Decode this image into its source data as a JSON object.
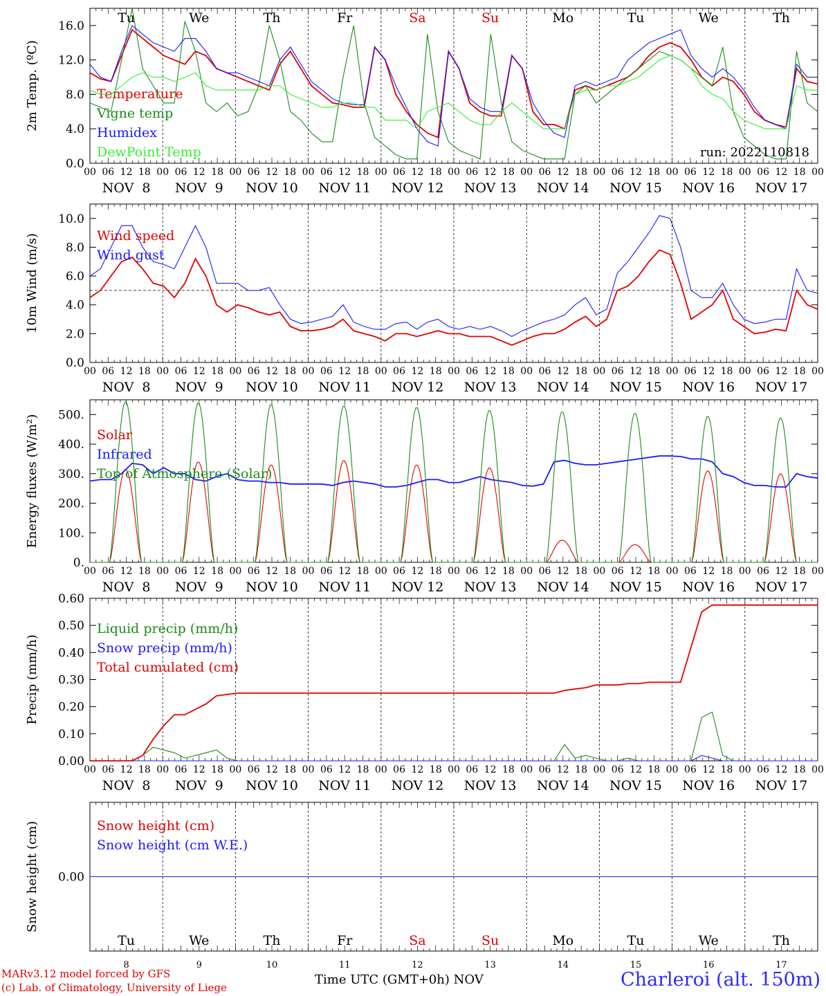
{
  "chart_data": {
    "type": "line",
    "run_label": "run: 2022110818",
    "x_ticks_hours": [
      "00",
      "06",
      "12",
      "18"
    ],
    "dates": [
      "NOV  8",
      "NOV  9",
      "NOV 10",
      "NOV 11",
      "NOV 12",
      "NOV 13",
      "NOV 14",
      "NOV 15",
      "NOV 16",
      "NOV 17"
    ],
    "weekdays": [
      {
        "name": "Tu",
        "color": "#000000"
      },
      {
        "name": "We",
        "color": "#000000"
      },
      {
        "name": "Th",
        "color": "#000000"
      },
      {
        "name": "Fr",
        "color": "#000000"
      },
      {
        "name": "Sa",
        "color": "#e00000"
      },
      {
        "name": "Su",
        "color": "#e00000"
      },
      {
        "name": "Mo",
        "color": "#000000"
      },
      {
        "name": "Tu",
        "color": "#000000"
      },
      {
        "name": "We",
        "color": "#000000"
      },
      {
        "name": "Th",
        "color": "#000000"
      }
    ],
    "day_numbers": [
      "8",
      "9",
      "10",
      "11",
      "12",
      "13",
      "14",
      "15",
      "16",
      "17"
    ],
    "panels": [
      {
        "id": "temperature",
        "ylabel": "2m Temp. (ºC)",
        "ylim": [
          0,
          18
        ],
        "yticks": [
          0,
          4,
          8,
          12,
          16
        ],
        "ytick_labels": [
          "0.0",
          "4.0",
          "8.0",
          "12.0",
          "16.0"
        ],
        "series": [
          {
            "name": "Temperature",
            "color": "#e00000",
            "values": [
              10.5,
              9.8,
              9.5,
              12.5,
              15.5,
              14.5,
              13.5,
              12.5,
              12,
              11.5,
              13,
              12.5,
              11,
              10.5,
              10,
              9.5,
              9,
              8.5,
              11.5,
              13,
              11,
              9,
              8,
              7,
              6.8,
              6.5,
              6.5,
              13.5,
              12,
              8,
              6,
              4.5,
              3.5,
              3,
              13,
              11,
              7,
              6,
              5.5,
              5.5,
              12.5,
              11,
              6,
              4.5,
              4.5,
              4,
              8.5,
              9,
              8.5,
              9,
              9.5,
              10,
              11,
              12.5,
              13.5,
              14,
              13.5,
              12,
              10,
              9,
              10,
              9.5,
              8,
              6,
              5,
              4.5,
              4.2,
              11,
              9.5,
              9.2
            ]
          },
          {
            "name": "Vigne temp",
            "color": "#1a8a1a",
            "values": [
              7,
              6.5,
              6,
              12,
              18,
              11,
              9,
              7,
              7,
              16.5,
              13,
              7,
              6,
              7,
              5.5,
              6,
              9,
              16,
              12,
              6,
              5,
              3.5,
              2.5,
              2.5,
              10,
              16,
              7,
              3,
              2,
              1,
              0.5,
              0.5,
              15,
              6,
              2.5,
              1.5,
              1,
              0.5,
              15,
              7,
              2.5,
              1.5,
              1,
              0.5,
              0.5,
              0.5,
              8,
              9,
              7,
              8,
              9,
              10,
              11,
              12,
              13,
              12.5,
              12,
              11,
              10,
              9,
              13.5,
              6,
              3,
              2,
              1,
              0.5,
              0.5,
              13,
              7,
              6
            ]
          },
          {
            "name": "Humidex",
            "color": "#1a1aff",
            "values": [
              11.5,
              10,
              9.5,
              13,
              16,
              15,
              14,
              13.5,
              13,
              14.5,
              14.5,
              13,
              11,
              10.5,
              10.5,
              10,
              9.5,
              9,
              12,
              13.5,
              11.5,
              9.5,
              8.5,
              7.5,
              7,
              6.8,
              6.8,
              13.5,
              12,
              9,
              6.5,
              4,
              2.5,
              2,
              13,
              11,
              7.5,
              6.5,
              6,
              6,
              12.5,
              11,
              7,
              5,
              3.5,
              3,
              9,
              9.5,
              9,
              9.5,
              10,
              12,
              13,
              14,
              14.5,
              15,
              15.5,
              12.5,
              11,
              10,
              11,
              10,
              8.5,
              6.5,
              5,
              4.5,
              4,
              11.5,
              10,
              10
            ]
          },
          {
            "name": "DewPoint Temp",
            "color": "#33ee33",
            "values": [
              8.5,
              8,
              8,
              9,
              10,
              10.5,
              10,
              10,
              9.5,
              10,
              10.5,
              9,
              8.5,
              8.5,
              8.5,
              8.5,
              8.5,
              9,
              9,
              8,
              7.5,
              7,
              6.5,
              6.5,
              7,
              7,
              6.5,
              6.5,
              5,
              5,
              5,
              4,
              6,
              6.5,
              7,
              6,
              5,
              4.5,
              4.5,
              6,
              7,
              6,
              5,
              4,
              4,
              4,
              8,
              8.5,
              8.5,
              9,
              9,
              9.5,
              10,
              11,
              12,
              12.5,
              12,
              11,
              9,
              8,
              7.5,
              6,
              5,
              4.5,
              4,
              4,
              4,
              9,
              8.5,
              8.5
            ]
          }
        ]
      },
      {
        "id": "wind",
        "ylabel": "10m Wind (m/s)",
        "ylim": [
          0,
          11
        ],
        "yticks": [
          0,
          2,
          4,
          6,
          8,
          10
        ],
        "ytick_labels": [
          "0.0",
          "2.0",
          "4.0",
          "6.0",
          "8.0",
          "10.0"
        ],
        "reference_line": 5,
        "series": [
          {
            "name": "Wind speed",
            "color": "#e00000",
            "values": [
              4.5,
              5,
              6,
              7,
              7.3,
              6.5,
              5.5,
              5.3,
              4.5,
              5.5,
              7.2,
              6,
              4,
              3.5,
              4,
              3.8,
              3.5,
              3.3,
              3.5,
              2.5,
              2.2,
              2.2,
              2.3,
              2.5,
              3,
              2.2,
              2,
              1.8,
              1.5,
              2,
              2,
              1.8,
              2,
              2.2,
              2,
              2,
              1.8,
              1.8,
              1.8,
              1.5,
              1.2,
              1.5,
              1.8,
              2,
              2,
              2.3,
              2.8,
              3.2,
              2.5,
              3,
              5,
              5.3,
              6,
              7,
              7.8,
              7.5,
              5.5,
              3,
              3.5,
              4,
              5,
              3,
              2.5,
              2,
              2.1,
              2.3,
              2.2,
              5,
              4,
              3.7
            ]
          },
          {
            "name": "Wind gust",
            "color": "#1a1aff",
            "values": [
              6,
              6.5,
              8,
              9.5,
              9.5,
              8,
              7,
              6.8,
              6.5,
              8,
              9.5,
              8,
              5.5,
              5.5,
              5.5,
              5,
              5,
              5.2,
              4,
              3,
              2.7,
              2.8,
              3,
              3.2,
              4,
              2.8,
              2.5,
              2.3,
              2.3,
              2.7,
              2.8,
              2.3,
              2.8,
              3,
              2.5,
              2.3,
              2.5,
              2.3,
              2.5,
              2.2,
              1.8,
              2.2,
              2.5,
              2.8,
              3,
              3.3,
              4,
              4.5,
              3.3,
              3.7,
              6.2,
              7,
              8,
              9,
              10.2,
              10,
              8,
              5,
              4.5,
              4.5,
              5.5,
              4,
              3,
              2.7,
              2.8,
              3,
              3,
              6.5,
              5,
              4.8
            ]
          }
        ]
      },
      {
        "id": "energy",
        "ylabel": "Energy fluxes (W/m²)",
        "ylim": [
          0,
          550
        ],
        "yticks": [
          0,
          100,
          200,
          300,
          400,
          500
        ],
        "ytick_labels": [
          "0.",
          "100.",
          "200.",
          "300.",
          "400.",
          "500."
        ],
        "series": [
          {
            "name": "Solar",
            "color": "#e00000",
            "peaks": [
              315,
              340,
              330,
              345,
              330,
              320,
              75,
              60,
              310,
              300
            ]
          },
          {
            "name": "Infrared",
            "color": "#1a1aff",
            "values": [
              275,
              280,
              280,
              300,
              335,
              330,
              300,
              320,
              300,
              300,
              280,
              275,
              290,
              300,
              280,
              275,
              275,
              270,
              270,
              265,
              265,
              265,
              265,
              260,
              270,
              275,
              270,
              265,
              255,
              255,
              260,
              270,
              280,
              280,
              270,
              270,
              280,
              290,
              280,
              275,
              270,
              260,
              258,
              265,
              340,
              345,
              335,
              330,
              330,
              335,
              340,
              345,
              350,
              355,
              360,
              360,
              358,
              350,
              350,
              340,
              300,
              290,
              270,
              260,
              260,
              255,
              255,
              300,
              290,
              285
            ]
          },
          {
            "name": "Top of Atmosphere (Solar)",
            "color": "#1a8a1a",
            "peaks": [
              545,
              540,
              535,
              530,
              525,
              515,
              510,
              505,
              495,
              490
            ]
          }
        ]
      },
      {
        "id": "precip",
        "ylabel": "Precip (mm/h)",
        "ylim": [
          0,
          0.6
        ],
        "yticks": [
          0,
          0.1,
          0.2,
          0.3,
          0.4,
          0.5,
          0.6
        ],
        "ytick_labels": [
          "0.00",
          "0.10",
          "0.20",
          "0.30",
          "0.40",
          "0.50",
          "0.60"
        ],
        "series": [
          {
            "name": "Liquid precip (mm/h)",
            "color": "#1a8a1a",
            "values": [
              0,
              0,
              0,
              0,
              0,
              0.02,
              0.05,
              0.04,
              0.03,
              0.01,
              0.02,
              0.03,
              0.04,
              0.01,
              0,
              0,
              0,
              0,
              0,
              0,
              0,
              0,
              0,
              0,
              0,
              0,
              0,
              0,
              0,
              0,
              0,
              0,
              0,
              0,
              0,
              0,
              0,
              0,
              0,
              0,
              0,
              0,
              0,
              0,
              0,
              0.06,
              0.01,
              0.02,
              0.01,
              0,
              0,
              0.01,
              0,
              0,
              0,
              0,
              0,
              0,
              0.16,
              0.18,
              0.02,
              0,
              0,
              0,
              0,
              0,
              0,
              0,
              0,
              0
            ]
          },
          {
            "name": "Snow precip (mm/h)",
            "color": "#1a1aff",
            "values": [
              0,
              0,
              0,
              0,
              0,
              0,
              0,
              0,
              0,
              0,
              0,
              0,
              0,
              0,
              0,
              0,
              0,
              0,
              0,
              0,
              0,
              0,
              0,
              0,
              0,
              0,
              0,
              0,
              0,
              0,
              0,
              0,
              0,
              0,
              0,
              0,
              0,
              0,
              0,
              0,
              0,
              0,
              0,
              0,
              0,
              0,
              0,
              0,
              0,
              0,
              0,
              0,
              0,
              0,
              0,
              0,
              0,
              0,
              0.02,
              0.01,
              0,
              0,
              0,
              0,
              0,
              0,
              0,
              0,
              0,
              0
            ]
          },
          {
            "name": "Total cumulated (cm)",
            "color": "#e00000",
            "values": [
              0,
              0,
              0,
              0,
              0,
              0.02,
              0.08,
              0.13,
              0.17,
              0.17,
              0.19,
              0.21,
              0.24,
              0.245,
              0.25,
              0.25,
              0.25,
              0.25,
              0.25,
              0.25,
              0.25,
              0.25,
              0.25,
              0.25,
              0.25,
              0.25,
              0.25,
              0.25,
              0.25,
              0.25,
              0.25,
              0.25,
              0.25,
              0.25,
              0.25,
              0.25,
              0.25,
              0.25,
              0.25,
              0.25,
              0.25,
              0.25,
              0.25,
              0.25,
              0.25,
              0.26,
              0.265,
              0.27,
              0.28,
              0.28,
              0.28,
              0.285,
              0.285,
              0.29,
              0.29,
              0.29,
              0.29,
              0.42,
              0.55,
              0.575,
              0.575,
              0.575,
              0.575,
              0.575,
              0.575,
              0.575,
              0.575,
              0.575,
              0.575,
              0.575
            ]
          }
        ]
      },
      {
        "id": "snow",
        "ylabel": "Snow height (cm)",
        "ylim": [
          -1,
          1
        ],
        "yticks": [
          0
        ],
        "ytick_labels": [
          "0.00"
        ],
        "series": [
          {
            "name": "Snow height (cm)",
            "color": "#e00000",
            "values": [
              0,
              0
            ]
          },
          {
            "name": "Snow height (cm W.E.)",
            "color": "#1a1aff",
            "values": [
              0,
              0
            ]
          }
        ]
      }
    ]
  },
  "footer": {
    "credit_line1": "MARv3.12 model forced by GFS",
    "credit_line2": "(c) Lab. of Climatology, University of Liege",
    "xaxis_title": "Time UTC (GMT+0h) NOV",
    "station": "Charleroi (alt. 150m)"
  }
}
